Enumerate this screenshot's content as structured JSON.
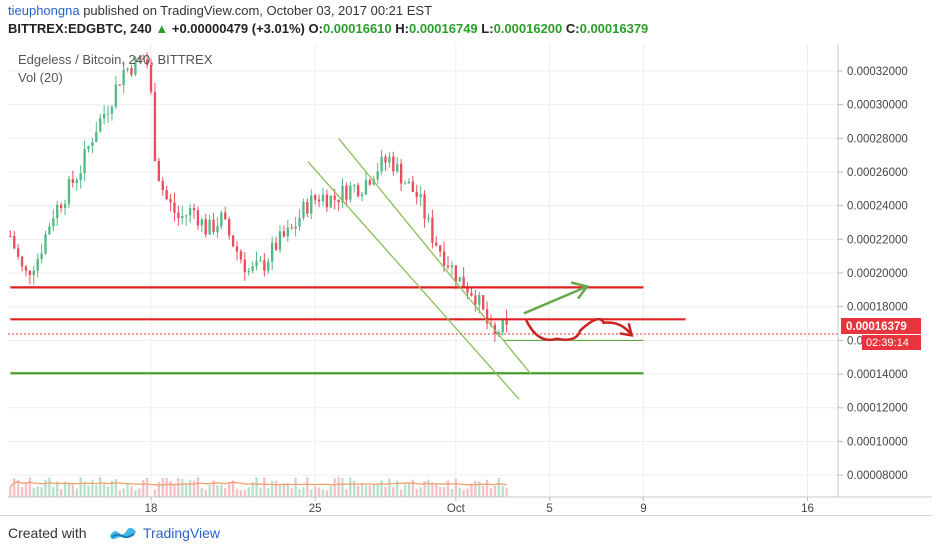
{
  "header": {
    "author": "tieuphongna",
    "published_text": "published on TradingView.com, October 03, 2017 00:21 EST",
    "symbol": "BITTREX:EDGBTC, 240",
    "change": "+0.00000479 (+3.01%)",
    "o_label": "O:",
    "o_value": "0.00016610",
    "h_label": "H:",
    "h_value": "0.00016749",
    "l_label": "L:",
    "l_value": "0.00016200",
    "c_label": "C:",
    "c_value": "0.00016379"
  },
  "legend": {
    "title": "Edgeless / Bitcoin, 240, BITTREX",
    "volume": "Vol (20)"
  },
  "price_badge": {
    "price": "0.00016379",
    "countdown": "02:39:14"
  },
  "footer": {
    "created_with": "Created with",
    "brand": "TradingView"
  },
  "colors": {
    "up_candle": "#53b987",
    "down_candle": "#eb4d5c",
    "resistance_line": "#e02020",
    "support_line": "#4aa02c",
    "channel_line": "#8bbf5a",
    "arrow_up": "#6aa84f",
    "arrow_down": "#cc2222",
    "volume_ma": "#f0a070",
    "price_badge": "#e8353d"
  },
  "chart_data": {
    "type": "candlestick",
    "symbol": "BITTREX:EDGBTC",
    "interval": "240",
    "yaxis": {
      "ticks": [
        "0.00032000",
        "0.00030000",
        "0.00028000",
        "0.00026000",
        "0.00024000",
        "0.00022000",
        "0.00020000",
        "0.00018000",
        "0.00016000",
        "0.00014000",
        "0.00012000",
        "0.00010000",
        "0.00008000"
      ],
      "range": [
        6.7e-05,
        0.000336
      ]
    },
    "xaxis": {
      "ticks": [
        {
          "label": "18",
          "day": 18
        },
        {
          "label": "25",
          "day": 25
        },
        {
          "label": "Oct",
          "day": 31
        },
        {
          "label": "5",
          "day": 35
        },
        {
          "label": "9",
          "day": 39
        },
        {
          "label": "16",
          "day": 46
        }
      ],
      "range": [
        11.9,
        47.3
      ]
    },
    "price_path": [
      [
        12.0,
        0.000222
      ],
      [
        12.6,
        0.000198
      ],
      [
        13.2,
        0.00021
      ],
      [
        13.8,
        0.000235
      ],
      [
        14.4,
        0.000248
      ],
      [
        15.0,
        0.000262
      ],
      [
        15.6,
        0.000285
      ],
      [
        16.2,
        0.0003
      ],
      [
        16.8,
        0.00032
      ],
      [
        17.4,
        0.000325
      ],
      [
        17.8,
        0.000328
      ],
      [
        18.0,
        0.000305
      ],
      [
        18.2,
        0.000265
      ],
      [
        18.6,
        0.000245
      ],
      [
        19.2,
        0.000232
      ],
      [
        19.8,
        0.000238
      ],
      [
        20.4,
        0.000225
      ],
      [
        21.0,
        0.000232
      ],
      [
        21.6,
        0.000215
      ],
      [
        22.2,
        0.0002
      ],
      [
        22.8,
        0.000205
      ],
      [
        23.4,
        0.000218
      ],
      [
        24.0,
        0.000225
      ],
      [
        24.6,
        0.00024
      ],
      [
        25.2,
        0.000246
      ],
      [
        25.8,
        0.000244
      ],
      [
        26.4,
        0.00025
      ],
      [
        27.0,
        0.000252
      ],
      [
        27.6,
        0.000262
      ],
      [
        28.2,
        0.000268
      ],
      [
        28.8,
        0.000255
      ],
      [
        29.4,
        0.000245
      ],
      [
        30.0,
        0.000222
      ],
      [
        30.6,
        0.000208
      ],
      [
        31.2,
        0.000195
      ],
      [
        31.8,
        0.000188
      ],
      [
        32.2,
        0.000175
      ],
      [
        32.6,
        0.00016
      ],
      [
        32.9,
        0.000168
      ],
      [
        33.2,
        0.000165
      ]
    ],
    "candles_approx": "about 120 four-hour candles",
    "volume": {
      "spike_day": 18,
      "spike_value": 6.4e-05
    },
    "annotations": [
      {
        "type": "horizontal",
        "color": "red",
        "price": 0.0001915,
        "from_day": 12.0,
        "to_day": 39.0
      },
      {
        "type": "horizontal",
        "color": "red",
        "price": 0.0001725,
        "from_day": 12.0,
        "to_day": 40.8
      },
      {
        "type": "horizontal",
        "color": "green",
        "price": 0.0001405,
        "from_day": 12.0,
        "to_day": 39.0
      },
      {
        "type": "horizontal",
        "color": "green",
        "price": 0.00016,
        "from_day": 33.0,
        "to_day": 39.0
      },
      {
        "type": "channel",
        "color": "green",
        "upper": [
          [
            26.0,
            0.00028
          ],
          [
            34.2,
            0.00014
          ]
        ],
        "lower": [
          [
            24.7,
            0.000266
          ],
          [
            33.7,
            0.000125
          ]
        ]
      },
      {
        "type": "arrow",
        "color": "green",
        "from": [
          33.9,
          0.000176
        ],
        "to": [
          36.6,
          0.000192
        ]
      },
      {
        "type": "curved_arrow",
        "color": "red",
        "from": [
          34.0,
          0.000172
        ],
        "via": [
          [
            35.3,
            0.000161
          ],
          [
            37.3,
            0.0001705
          ]
        ],
        "to": [
          38.5,
          0.000163
        ]
      }
    ]
  }
}
